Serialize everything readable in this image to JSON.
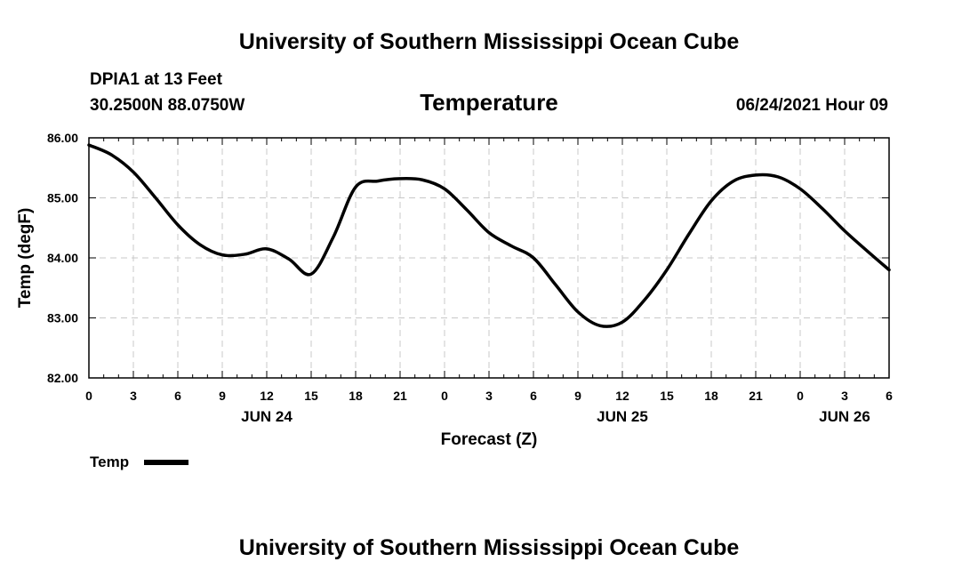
{
  "header": {
    "title": "University of Southern Mississippi Ocean Cube",
    "station": "DPIA1 at 13 Feet",
    "coords": "30.2500N  88.0750W",
    "timestamp": "06/24/2021 Hour 09"
  },
  "footer": {
    "title": "University of Southern Mississippi Ocean Cube"
  },
  "chart_data": {
    "type": "line",
    "title": "Temperature",
    "xlabel": "Forecast (Z)",
    "ylabel": "Temp (degF)",
    "xlim": [
      0,
      54
    ],
    "ylim": [
      82.0,
      86.0
    ],
    "grid": true,
    "legend_position": "bottom-left",
    "x_ticks": [
      0,
      3,
      6,
      9,
      12,
      15,
      18,
      21,
      24,
      27,
      30,
      33,
      36,
      39,
      42,
      45,
      48,
      51,
      54
    ],
    "x_tick_labels": [
      "0",
      "3",
      "6",
      "9",
      "12",
      "15",
      "18",
      "21",
      "0",
      "3",
      "6",
      "9",
      "12",
      "15",
      "18",
      "21",
      "0",
      "3",
      "6"
    ],
    "y_ticks": [
      82.0,
      83.0,
      84.0,
      85.0,
      86.0
    ],
    "y_tick_labels": [
      "82.00",
      "83.00",
      "84.00",
      "85.00",
      "86.00"
    ],
    "date_labels": [
      {
        "x": 12,
        "label": "JUN 24"
      },
      {
        "x": 36,
        "label": "JUN 25"
      },
      {
        "x": 51,
        "label": "JUN 26"
      }
    ],
    "series": [
      {
        "name": "Temp",
        "color": "#000000",
        "x": [
          0,
          1.5,
          3,
          4.5,
          6,
          7.5,
          9,
          10.5,
          12,
          13.5,
          15,
          16.5,
          18,
          19.5,
          21,
          22.5,
          24,
          25.5,
          27,
          28.5,
          30,
          31.5,
          33,
          34.5,
          36,
          37.5,
          39,
          40.5,
          42,
          43.5,
          45,
          46.5,
          48,
          49.5,
          51,
          52.5,
          54
        ],
        "values": [
          85.88,
          85.72,
          85.43,
          85.0,
          84.55,
          84.22,
          84.05,
          84.06,
          84.15,
          83.98,
          83.73,
          84.35,
          85.18,
          85.28,
          85.32,
          85.3,
          85.15,
          84.8,
          84.42,
          84.2,
          84.0,
          83.55,
          83.1,
          82.87,
          82.93,
          83.3,
          83.8,
          84.4,
          84.95,
          85.28,
          85.38,
          85.35,
          85.15,
          84.82,
          84.45,
          84.12,
          83.8
        ]
      }
    ]
  }
}
